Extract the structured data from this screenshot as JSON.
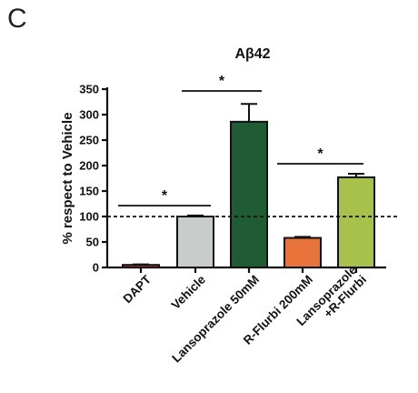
{
  "panel_label": "C",
  "chart_data": {
    "type": "bar",
    "title": "Aβ42",
    "ylabel": "% respect to Vehicle",
    "xlabel": "",
    "ylim": [
      0,
      350
    ],
    "yticks": [
      0,
      50,
      100,
      150,
      200,
      250,
      300,
      350
    ],
    "reference_line": 100,
    "categories": [
      "DAPT",
      "Vehicle",
      "Lansoprazole 50mM",
      "R-Flurbi 200mM",
      "Lansoprazole\n+R-Flurbi"
    ],
    "values": [
      5,
      100,
      286,
      58,
      177
    ],
    "errors": [
      1,
      2,
      35,
      2,
      7
    ],
    "colors": [
      "#c0392b",
      "#c8cccb",
      "#1f5c34",
      "#e8743b",
      "#a8c14a"
    ],
    "significance": [
      {
        "from": 0,
        "to": 1,
        "label": "*"
      },
      {
        "from": 1,
        "to": 2,
        "label": "*"
      },
      {
        "from": 3,
        "to": 4,
        "label": "*"
      }
    ]
  }
}
